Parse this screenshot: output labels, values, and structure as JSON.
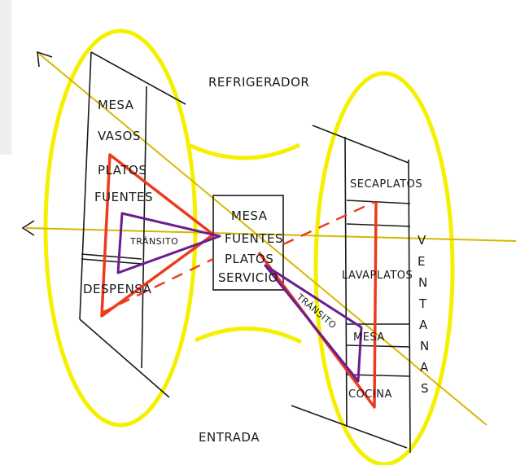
{
  "labels": {
    "refrigerador": "REFRIGERADOR",
    "entrada": "ENTRADA",
    "left_mesa": "MESA",
    "vasos": "VASOS",
    "platos": "PLATOS",
    "fuentes": "FUENTES",
    "transito_left": "TRÁNSITO",
    "despensa": "DESPENSA",
    "center_mesa": "MESA",
    "center_fuentes": "FUENTES",
    "center_platos": "PLATOS",
    "center_servicio": "SERVICIO",
    "transito_right": "TRÁNSITO",
    "secaplatos": "SECAPLATOS",
    "lavaplatos": "LAVAPLATOS",
    "right_mesa": "MESA",
    "cocina": "COCINA",
    "ventanas": [
      "V",
      "E",
      "N",
      "T",
      "A",
      "N",
      "A",
      "S"
    ]
  },
  "colors": {
    "highlight": "#f5f000",
    "red_path": "#ee3a1c",
    "purple_path": "#6a1d8f",
    "ink": "#1a1a1a",
    "axis_line": "#d6b800",
    "light_wash": "#f8f6a0"
  }
}
